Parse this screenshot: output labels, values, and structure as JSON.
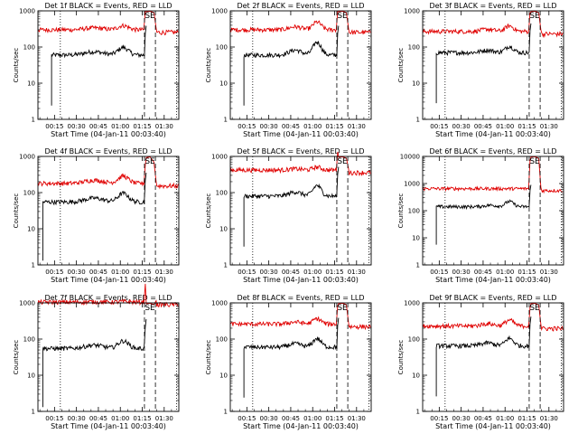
{
  "window": {
    "title": ""
  },
  "colors": {
    "events": "#000000",
    "lld": "#e00000",
    "axes": "#000000",
    "background": "#ffffff"
  },
  "common": {
    "xlabel": "Start Time (04-Jan-11 00:03:40)",
    "ylabel": "Counts/sec",
    "x_tick_labels": [
      "00:15",
      "00:30",
      "00:45",
      "01:00",
      "01:15",
      "01:30"
    ],
    "x_tick_values_min": [
      15,
      30,
      45,
      60,
      75,
      90
    ],
    "x_range_min": [
      3.67,
      100
    ],
    "y_scale": "log",
    "y_tick_labels": [
      "1",
      "10",
      "100",
      "1000"
    ],
    "saa_label": "SE",
    "markers_min": {
      "dotted_left": 19,
      "dashed_1": 76.5,
      "dashed_2": 84,
      "dotted_right": 98.5
    }
  },
  "chart_data": [
    {
      "type": "line",
      "title": "Det 1f BLACK = Events, RED = LLD",
      "ylim": [
        1,
        1000
      ],
      "y_tick_labels": [
        "1",
        "10",
        "100",
        "1000"
      ],
      "series": [
        {
          "name": "Events",
          "start_min": 13,
          "base": 60,
          "bump": 110,
          "shape": "a"
        },
        {
          "name": "LLD",
          "start_min": 3.67,
          "base": 300,
          "bump": 420,
          "shape": "a"
        }
      ]
    },
    {
      "type": "line",
      "title": "Det 2f BLACK = Events, RED = LLD",
      "ylim": [
        1,
        1000
      ],
      "y_tick_labels": [
        "1",
        "10",
        "100",
        "1000"
      ],
      "series": [
        {
          "name": "Events",
          "start_min": 13,
          "base": 60,
          "bump": 150,
          "shape": "b"
        },
        {
          "name": "LLD",
          "start_min": 3.67,
          "base": 300,
          "bump": 520,
          "shape": "b"
        }
      ]
    },
    {
      "type": "line",
      "title": "Det 3f BLACK = Events, RED = LLD",
      "ylim": [
        1,
        1000
      ],
      "y_tick_labels": [
        "1",
        "10",
        "100",
        "1000"
      ],
      "series": [
        {
          "name": "Events",
          "start_min": 13,
          "base": 70,
          "bump": 110,
          "shape": "b"
        },
        {
          "name": "LLD",
          "start_min": 3.67,
          "base": 270,
          "bump": 400,
          "shape": "b"
        }
      ]
    },
    {
      "type": "line",
      "title": "Det 4f BLACK = Events, RED = LLD",
      "ylim": [
        1,
        1000
      ],
      "y_tick_labels": [
        "1",
        "10",
        "100",
        "1000"
      ],
      "series": [
        {
          "name": "Events",
          "start_min": 7,
          "base": 55,
          "bump": 110,
          "shape": "a"
        },
        {
          "name": "LLD",
          "start_min": 3.67,
          "base": 180,
          "bump": 320,
          "shape": "a"
        }
      ]
    },
    {
      "type": "line",
      "title": "Det 5f BLACK = Events, RED = LLD",
      "ylim": [
        1,
        1000
      ],
      "y_tick_labels": [
        "1",
        "10",
        "100",
        "1000"
      ],
      "series": [
        {
          "name": "Events",
          "start_min": 13,
          "base": 80,
          "bump": 170,
          "shape": "b"
        },
        {
          "name": "LLD",
          "start_min": 3.67,
          "base": 420,
          "bump": 520,
          "shape": "b"
        }
      ]
    },
    {
      "type": "line",
      "title": "Det 6f BLACK = Events, RED = LLD",
      "ylim": [
        1,
        10000
      ],
      "y_tick_labels": [
        "1",
        "10",
        "100",
        "1000",
        "10000"
      ],
      "series": [
        {
          "name": "Events",
          "start_min": 13,
          "base": 140,
          "bump": 230,
          "shape": "c"
        },
        {
          "name": "LLD",
          "start_min": 3.67,
          "base": 650,
          "bump": 650,
          "shape": "c"
        }
      ]
    },
    {
      "type": "line",
      "title": "Det 7f BLACK = Events, RED = LLD",
      "ylim": [
        1,
        1000
      ],
      "y_tick_labels": [
        "1",
        "10",
        "100",
        "1000"
      ],
      "series": [
        {
          "name": "Events",
          "start_min": 7,
          "base": 55,
          "bump": 100,
          "shape": "a"
        },
        {
          "name": "LLD",
          "start_min": 3.67,
          "base": 1050,
          "bump": 1100,
          "shape": "a"
        }
      ]
    },
    {
      "type": "line",
      "title": "Det 8f BLACK = Events, RED = LLD",
      "ylim": [
        1,
        1000
      ],
      "y_tick_labels": [
        "1",
        "10",
        "100",
        "1000"
      ],
      "series": [
        {
          "name": "Events",
          "start_min": 13,
          "base": 60,
          "bump": 110,
          "shape": "b"
        },
        {
          "name": "LLD",
          "start_min": 3.67,
          "base": 260,
          "bump": 380,
          "shape": "b"
        }
      ]
    },
    {
      "type": "line",
      "title": "Det 9f BLACK = Events, RED = LLD",
      "ylim": [
        1,
        1000
      ],
      "y_tick_labels": [
        "1",
        "10",
        "100",
        "1000"
      ],
      "series": [
        {
          "name": "Events",
          "start_min": 13,
          "base": 65,
          "bump": 110,
          "shape": "b"
        },
        {
          "name": "LLD",
          "start_min": 3.67,
          "base": 230,
          "bump": 350,
          "shape": "b"
        }
      ]
    }
  ]
}
